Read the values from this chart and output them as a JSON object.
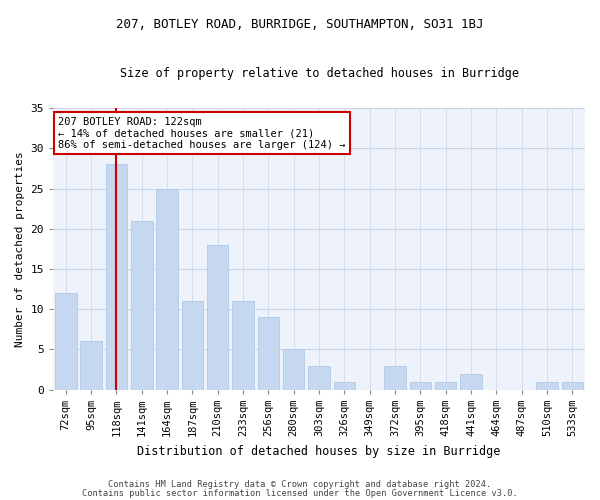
{
  "title1": "207, BOTLEY ROAD, BURRIDGE, SOUTHAMPTON, SO31 1BJ",
  "title2": "Size of property relative to detached houses in Burridge",
  "xlabel": "Distribution of detached houses by size in Burridge",
  "ylabel": "Number of detached properties",
  "categories": [
    "72sqm",
    "95sqm",
    "118sqm",
    "141sqm",
    "164sqm",
    "187sqm",
    "210sqm",
    "233sqm",
    "256sqm",
    "280sqm",
    "303sqm",
    "326sqm",
    "349sqm",
    "372sqm",
    "395sqm",
    "418sqm",
    "441sqm",
    "464sqm",
    "487sqm",
    "510sqm",
    "533sqm"
  ],
  "values": [
    12,
    6,
    28,
    21,
    25,
    11,
    18,
    11,
    9,
    5,
    3,
    1,
    0,
    3,
    1,
    1,
    2,
    0,
    0,
    1,
    1
  ],
  "bar_color": "#c5d8f0",
  "bar_edgecolor": "#a8c4e0",
  "highlight_index": 2,
  "highlight_line_color": "#cc0000",
  "ylim": [
    0,
    35
  ],
  "yticks": [
    0,
    5,
    10,
    15,
    20,
    25,
    30,
    35
  ],
  "annotation_line1": "207 BOTLEY ROAD: 122sqm",
  "annotation_line2": "← 14% of detached houses are smaller (21)",
  "annotation_line3": "86% of semi-detached houses are larger (124) →",
  "annotation_box_edgecolor": "#cc0000",
  "annotation_box_facecolor": "#ffffff",
  "footer1": "Contains HM Land Registry data © Crown copyright and database right 2024.",
  "footer2": "Contains public sector information licensed under the Open Government Licence v3.0.",
  "bg_color": "#eef2fa",
  "grid_color": "#c8d4e8"
}
